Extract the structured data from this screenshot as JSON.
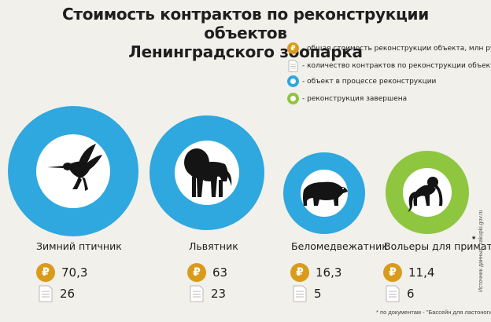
{
  "title": {
    "line1": "Стоимость контрактов по реконструкции объектов",
    "line2": "Ленинградского зоопарка"
  },
  "legend": [
    {
      "icon": "ruble-coin-icon",
      "label": "- общая стоимость реконструкции объекта, млн руб."
    },
    {
      "icon": "document-icon",
      "label": "- количество контрактов по реконструкции объекта"
    },
    {
      "icon": "blue-ring-icon",
      "label": "- объект в процессе реконструкции",
      "color": "#2ea8de"
    },
    {
      "icon": "green-ring-icon",
      "label": "- реконструкция завершена",
      "color": "#8ec63f"
    }
  ],
  "coin_symbol": "₽",
  "colors": {
    "in_progress": "#2ea8de",
    "completed": "#8ec63f",
    "coin": "#d99b1b",
    "background": "#f2f0ea"
  },
  "objects": [
    {
      "name": "Зимний птичник",
      "cost": "70,3",
      "contracts": "26",
      "status": "in_progress",
      "icon": "hummingbird-icon"
    },
    {
      "name": "Львятник",
      "cost": "63",
      "contracts": "23",
      "status": "in_progress",
      "icon": "lion-icon"
    },
    {
      "name": "Беломедвежатник",
      "cost": "16,3",
      "contracts": "5",
      "status": "in_progress",
      "icon": "polar-bear-icon"
    },
    {
      "name": "Вольеры для приматов",
      "cost": "11,4",
      "contracts": "6",
      "status": "completed",
      "icon": "monkey-icon"
    }
  ],
  "asterisk": "*",
  "footnote": "* по документам - \"Бассейн для ластоногих\"",
  "source": "Источник данных: zakupki.gov.ru"
}
